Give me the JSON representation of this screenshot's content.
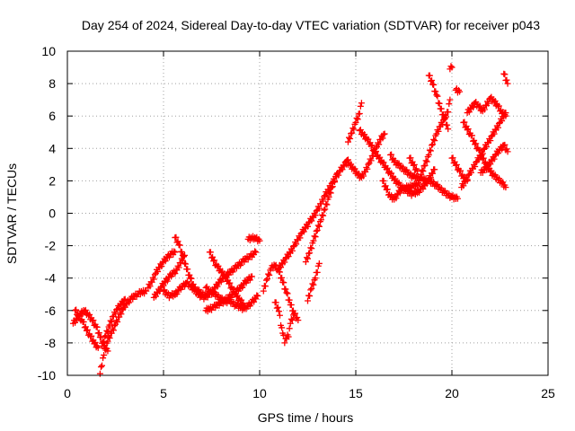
{
  "chart_data": {
    "type": "scatter",
    "title": "Day 254 of 2024, Sidereal Day-to-day VTEC variation (SDTVAR) for receiver p043",
    "xlabel": "GPS time / hours",
    "ylabel": "SDTVAR / TECUs",
    "xlim": [
      0,
      25
    ],
    "ylim": [
      -10,
      10
    ],
    "xticks": [
      0,
      5,
      10,
      15,
      20,
      25
    ],
    "yticks": [
      -10,
      -8,
      -6,
      -4,
      -2,
      0,
      2,
      4,
      6,
      8,
      10
    ],
    "grid": true,
    "marker": "+",
    "colors": {
      "series": "#ff0000",
      "grid": "#a0a0a0",
      "axis": "#000000"
    },
    "series": [
      {
        "name": "p043",
        "tracks": [
          [
            [
              0.4,
              -6.0
            ],
            [
              0.6,
              -6.3
            ],
            [
              0.8,
              -6.7
            ],
            [
              1.0,
              -7.2
            ],
            [
              1.2,
              -7.6
            ],
            [
              1.4,
              -8.0
            ],
            [
              1.6,
              -8.3
            ]
          ],
          [
            [
              0.3,
              -6.8
            ],
            [
              0.5,
              -6.5
            ],
            [
              0.7,
              -6.2
            ],
            [
              0.9,
              -6.0
            ],
            [
              1.1,
              -6.3
            ],
            [
              1.3,
              -6.6
            ],
            [
              1.5,
              -7.0
            ],
            [
              1.7,
              -7.6
            ],
            [
              1.9,
              -8.2
            ],
            [
              2.1,
              -8.5
            ]
          ],
          [
            [
              1.7,
              -9.9
            ],
            [
              1.8,
              -9.3
            ],
            [
              1.9,
              -8.7
            ],
            [
              2.0,
              -8.2
            ],
            [
              2.2,
              -7.6
            ],
            [
              2.4,
              -7.1
            ],
            [
              2.6,
              -6.6
            ],
            [
              2.8,
              -6.1
            ],
            [
              3.0,
              -5.7
            ],
            [
              3.2,
              -5.4
            ],
            [
              3.5,
              -5.1
            ],
            [
              3.8,
              -4.9
            ],
            [
              4.1,
              -4.8
            ]
          ],
          [
            [
              1.8,
              -8.2
            ],
            [
              2.0,
              -7.5
            ],
            [
              2.2,
              -6.9
            ],
            [
              2.4,
              -6.3
            ],
            [
              2.6,
              -5.9
            ],
            [
              2.8,
              -5.6
            ],
            [
              3.0,
              -5.3
            ]
          ],
          [
            [
              4.2,
              -4.6
            ],
            [
              4.4,
              -4.2
            ],
            [
              4.6,
              -3.7
            ],
            [
              4.8,
              -3.3
            ],
            [
              5.0,
              -3.0
            ],
            [
              5.2,
              -2.7
            ],
            [
              5.4,
              -2.5
            ],
            [
              5.6,
              -2.4
            ]
          ],
          [
            [
              4.5,
              -5.2
            ],
            [
              4.8,
              -4.7
            ],
            [
              5.1,
              -4.2
            ],
            [
              5.4,
              -3.8
            ],
            [
              5.7,
              -3.5
            ],
            [
              5.9,
              -3.0
            ],
            [
              6.1,
              -2.6
            ]
          ],
          [
            [
              5.6,
              -1.5
            ],
            [
              5.8,
              -1.9
            ],
            [
              6.0,
              -2.6
            ],
            [
              6.2,
              -3.4
            ],
            [
              6.4,
              -4.0
            ],
            [
              6.6,
              -4.6
            ],
            [
              6.9,
              -4.9
            ],
            [
              7.2,
              -5.1
            ]
          ],
          [
            [
              5.0,
              -4.8
            ],
            [
              5.3,
              -5.1
            ],
            [
              5.6,
              -5.0
            ],
            [
              5.9,
              -4.6
            ],
            [
              6.2,
              -4.3
            ],
            [
              6.5,
              -4.6
            ],
            [
              6.8,
              -5.0
            ],
            [
              7.1,
              -5.2
            ],
            [
              7.4,
              -5.0
            ]
          ],
          [
            [
              7.2,
              -4.6
            ],
            [
              7.5,
              -4.9
            ],
            [
              7.8,
              -5.1
            ],
            [
              8.1,
              -5.4
            ],
            [
              8.4,
              -5.2
            ],
            [
              8.7,
              -4.9
            ],
            [
              9.0,
              -4.6
            ],
            [
              9.3,
              -4.2
            ],
            [
              9.6,
              -3.9
            ]
          ],
          [
            [
              7.4,
              -2.4
            ],
            [
              7.6,
              -2.9
            ],
            [
              7.8,
              -3.3
            ],
            [
              8.0,
              -3.6
            ],
            [
              8.2,
              -3.9
            ],
            [
              8.4,
              -4.3
            ],
            [
              8.6,
              -4.7
            ],
            [
              8.8,
              -5.1
            ],
            [
              9.0,
              -5.4
            ],
            [
              9.2,
              -5.7
            ]
          ],
          [
            [
              7.5,
              -4.9
            ],
            [
              7.8,
              -4.4
            ],
            [
              8.1,
              -4.0
            ],
            [
              8.4,
              -3.7
            ],
            [
              8.7,
              -3.4
            ],
            [
              9.0,
              -3.1
            ],
            [
              9.3,
              -2.8
            ],
            [
              9.6,
              -2.6
            ],
            [
              9.8,
              -2.4
            ]
          ],
          [
            [
              7.2,
              -6.0
            ],
            [
              7.6,
              -5.8
            ],
            [
              8.0,
              -5.5
            ],
            [
              8.4,
              -5.4
            ],
            [
              8.8,
              -5.7
            ],
            [
              9.2,
              -5.9
            ],
            [
              9.6,
              -5.5
            ],
            [
              9.9,
              -5.1
            ]
          ],
          [
            [
              9.4,
              -1.6
            ],
            [
              9.7,
              -1.5
            ],
            [
              10.0,
              -1.7
            ]
          ],
          [
            [
              10.2,
              -4.8
            ],
            [
              10.4,
              -4.0
            ],
            [
              10.6,
              -3.4
            ],
            [
              10.8,
              -3.2
            ],
            [
              11.0,
              -3.6
            ],
            [
              11.2,
              -4.2
            ],
            [
              11.4,
              -4.9
            ],
            [
              11.6,
              -5.6
            ],
            [
              11.8,
              -6.2
            ],
            [
              12.0,
              -6.6
            ]
          ],
          [
            [
              10.8,
              -5.5
            ],
            [
              11.0,
              -6.0
            ],
            [
              11.1,
              -6.8
            ],
            [
              11.2,
              -7.4
            ],
            [
              11.3,
              -7.9
            ],
            [
              11.5,
              -7.5
            ],
            [
              11.6,
              -6.8
            ],
            [
              11.8,
              -6.2
            ]
          ],
          [
            [
              11.0,
              -3.4
            ],
            [
              11.3,
              -2.9
            ],
            [
              11.6,
              -2.4
            ],
            [
              11.9,
              -1.8
            ],
            [
              12.2,
              -1.2
            ],
            [
              12.5,
              -0.7
            ],
            [
              12.8,
              -0.2
            ],
            [
              13.1,
              0.4
            ],
            [
              13.4,
              1.1
            ],
            [
              13.7,
              1.7
            ],
            [
              14.0,
              2.3
            ],
            [
              14.3,
              2.8
            ],
            [
              14.6,
              3.3
            ]
          ],
          [
            [
              12.4,
              -3.0
            ],
            [
              12.6,
              -2.4
            ],
            [
              12.8,
              -1.7
            ],
            [
              13.0,
              -1.0
            ],
            [
              13.2,
              -0.4
            ],
            [
              13.4,
              0.3
            ],
            [
              13.6,
              1.0
            ],
            [
              13.8,
              1.7
            ],
            [
              14.0,
              2.4
            ]
          ],
          [
            [
              12.5,
              -5.4
            ],
            [
              12.7,
              -4.6
            ],
            [
              12.9,
              -4.0
            ],
            [
              13.1,
              -3.1
            ]
          ],
          [
            [
              14.6,
              4.4
            ],
            [
              14.8,
              5.0
            ],
            [
              15.0,
              5.6
            ],
            [
              15.2,
              6.2
            ],
            [
              15.3,
              6.8
            ]
          ],
          [
            [
              14.5,
              3.2
            ],
            [
              14.7,
              3.0
            ],
            [
              14.9,
              2.7
            ],
            [
              15.1,
              2.4
            ],
            [
              15.3,
              2.2
            ],
            [
              15.5,
              2.6
            ],
            [
              15.7,
              3.1
            ],
            [
              15.9,
              3.6
            ],
            [
              16.1,
              4.1
            ],
            [
              16.3,
              4.6
            ],
            [
              16.5,
              4.9
            ]
          ],
          [
            [
              15.2,
              5.1
            ],
            [
              15.5,
              4.7
            ],
            [
              15.8,
              4.2
            ],
            [
              16.1,
              3.6
            ],
            [
              16.4,
              3.1
            ],
            [
              16.7,
              2.6
            ],
            [
              17.0,
              2.1
            ],
            [
              17.3,
              1.7
            ],
            [
              17.6,
              1.4
            ],
            [
              17.9,
              1.2
            ],
            [
              18.2,
              1.3
            ],
            [
              18.5,
              1.6
            ],
            [
              18.8,
              2.1
            ],
            [
              19.1,
              2.7
            ]
          ],
          [
            [
              16.4,
              2.0
            ],
            [
              16.6,
              1.5
            ],
            [
              16.8,
              1.0
            ],
            [
              17.0,
              0.9
            ],
            [
              17.2,
              1.2
            ],
            [
              17.4,
              1.5
            ],
            [
              17.7,
              1.6
            ],
            [
              18.0,
              1.7
            ],
            [
              18.3,
              1.8
            ]
          ],
          [
            [
              16.8,
              3.6
            ],
            [
              17.0,
              3.2
            ],
            [
              17.3,
              2.9
            ],
            [
              17.6,
              2.6
            ],
            [
              17.9,
              2.3
            ],
            [
              18.2,
              2.2
            ],
            [
              18.5,
              2.1
            ],
            [
              18.8,
              2.0
            ],
            [
              19.1,
              1.8
            ],
            [
              19.4,
              1.5
            ],
            [
              19.7,
              1.2
            ],
            [
              20.0,
              1.0
            ],
            [
              20.3,
              0.9
            ]
          ],
          [
            [
              17.8,
              3.4
            ],
            [
              18.0,
              3.0
            ],
            [
              18.2,
              2.6
            ]
          ],
          [
            [
              18.4,
              2.4
            ],
            [
              18.6,
              3.0
            ],
            [
              18.8,
              3.6
            ],
            [
              19.0,
              4.3
            ],
            [
              19.2,
              4.9
            ],
            [
              19.4,
              5.4
            ],
            [
              19.6,
              5.8
            ],
            [
              19.8,
              6.3
            ],
            [
              19.9,
              7.0
            ]
          ],
          [
            [
              18.8,
              8.5
            ],
            [
              19.0,
              8.0
            ],
            [
              19.2,
              7.3
            ],
            [
              19.4,
              6.5
            ],
            [
              19.6,
              5.9
            ],
            [
              19.8,
              5.2
            ]
          ],
          [
            [
              20.0,
              3.4
            ],
            [
              20.2,
              3.0
            ],
            [
              20.4,
              2.6
            ],
            [
              20.6,
              2.2
            ],
            [
              20.8,
              2.0
            ]
          ],
          [
            [
              19.9,
              8.9
            ],
            [
              20.0,
              9.0
            ]
          ],
          [
            [
              20.2,
              7.6
            ],
            [
              20.4,
              7.5
            ]
          ],
          [
            [
              20.6,
              5.6
            ],
            [
              20.8,
              5.2
            ],
            [
              21.0,
              4.8
            ],
            [
              21.2,
              4.3
            ],
            [
              21.4,
              3.9
            ],
            [
              21.6,
              3.4
            ],
            [
              21.8,
              3.0
            ],
            [
              22.0,
              2.6
            ],
            [
              22.2,
              2.3
            ],
            [
              22.5,
              2.0
            ],
            [
              22.8,
              1.6
            ]
          ],
          [
            [
              20.8,
              6.2
            ],
            [
              21.0,
              6.5
            ],
            [
              21.2,
              6.8
            ],
            [
              21.4,
              6.6
            ],
            [
              21.6,
              6.3
            ],
            [
              21.8,
              6.7
            ],
            [
              22.0,
              7.1
            ],
            [
              22.2,
              6.9
            ],
            [
              22.4,
              6.6
            ],
            [
              22.6,
              6.2
            ],
            [
              22.8,
              6.0
            ]
          ],
          [
            [
              20.5,
              1.6
            ],
            [
              20.8,
              2.2
            ],
            [
              21.1,
              2.8
            ],
            [
              21.4,
              3.4
            ],
            [
              21.7,
              4.0
            ],
            [
              22.0,
              4.6
            ],
            [
              22.3,
              5.2
            ],
            [
              22.6,
              5.8
            ],
            [
              22.8,
              6.2
            ]
          ],
          [
            [
              21.5,
              2.5
            ],
            [
              21.8,
              2.8
            ],
            [
              22.1,
              3.3
            ],
            [
              22.4,
              3.8
            ],
            [
              22.7,
              4.2
            ],
            [
              22.9,
              3.8
            ]
          ],
          [
            [
              22.7,
              8.6
            ],
            [
              22.8,
              8.3
            ],
            [
              22.9,
              8.0
            ]
          ]
        ]
      }
    ]
  }
}
